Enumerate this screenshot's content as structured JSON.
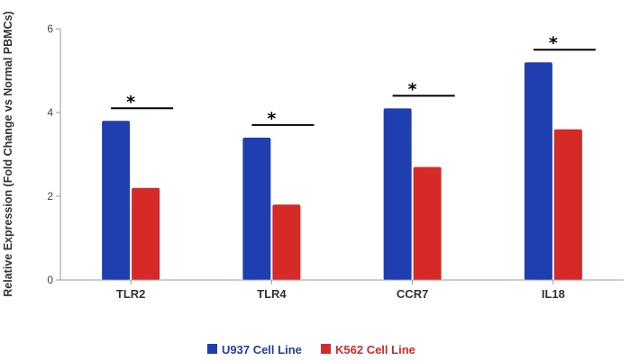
{
  "chart_data": {
    "type": "bar",
    "title": "",
    "xlabel": "",
    "ylabel": "Relative Expression (Fold Change vs Normal PBMCs)",
    "categories": [
      "TLR2",
      "TLR4",
      "CCR7",
      "IL18"
    ],
    "series": [
      {
        "name": "U937 Cell Line",
        "color": "#1f3fb0",
        "values": [
          3.8,
          3.4,
          4.1,
          5.2
        ]
      },
      {
        "name": "K562 Cell Line",
        "color": "#d62a28",
        "values": [
          2.2,
          1.8,
          2.7,
          3.6
        ]
      }
    ],
    "ylim": [
      0,
      6
    ],
    "yticks": [
      0,
      2,
      4,
      6
    ],
    "grid": false,
    "legend_position": "bottom-center",
    "annotations": [
      {
        "category": "TLR2",
        "text": "*"
      },
      {
        "category": "TLR4",
        "text": "*"
      },
      {
        "category": "CCR7",
        "text": "*"
      },
      {
        "category": "IL18",
        "text": "*"
      }
    ]
  }
}
